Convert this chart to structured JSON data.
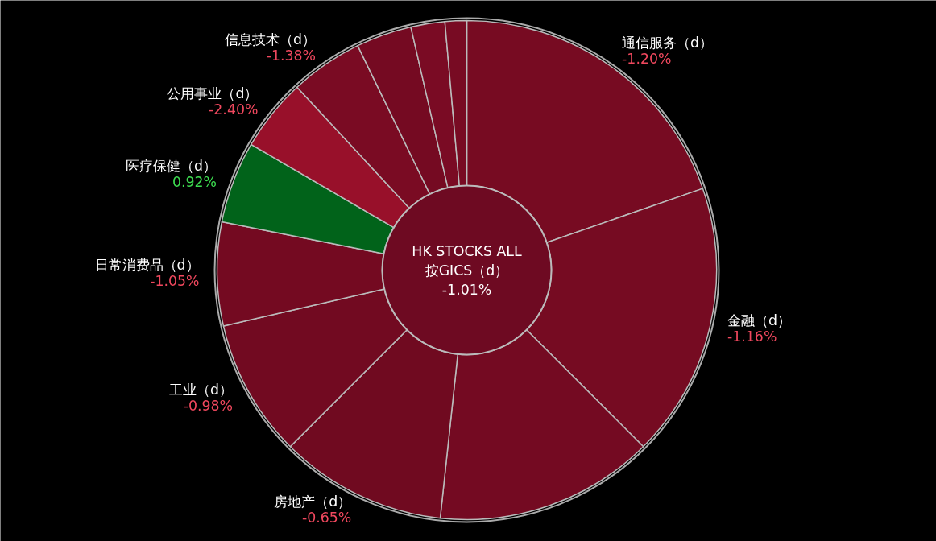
{
  "chart_data": {
    "type": "donut",
    "title": "HK STOCKS ALL",
    "subtitle": "按GICS（d）",
    "annotations": [
      "-1.01%",
      {
        "text": "-1.20%",
        "x": "通信服务（d）"
      },
      {
        "text": "-1.16%",
        "x": "金融（d）"
      },
      {
        "text": "-0.65%",
        "x": "房地产（d）"
      },
      {
        "text": "-0.98%",
        "x": "工业（d）"
      },
      {
        "text": "-1.05%",
        "x": "日常消费品（d）"
      },
      {
        "text": "0.92%",
        "x": "医疗保健（d）"
      },
      {
        "text": "-2.40%",
        "x": "公用事业（d）"
      },
      {
        "text": "-1.38%",
        "x": "信息技术（d）"
      }
    ],
    "categories": [
      "通信服务（d）",
      "金融（d）",
      null,
      "房地产（d）",
      "工业（d）",
      "日常消费品（d）",
      "医疗保健（d）",
      "公用事业（d）",
      "信息技术（d）",
      null,
      null,
      null
    ],
    "values": [
      19.7,
      17.8,
      14.2,
      10.8,
      8.9,
      6.7,
      5.3,
      4.7,
      4.7,
      3.6,
      2.2,
      1.4
    ],
    "colors": [
      "#770b22",
      "#760b22",
      "#740a22",
      "#700a20",
      "#720a21",
      "#740a21",
      "#01631a",
      "#98102a",
      "#7a0b23",
      "#750a22",
      "#7a0b24",
      "#780b23"
    ]
  }
}
